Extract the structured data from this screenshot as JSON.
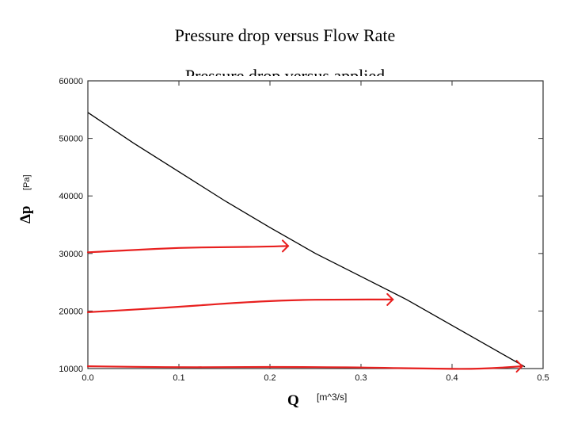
{
  "slide": {
    "title": "Pressure drop versus Flow Rate",
    "subtitle_partial": "Pressure drop versus applied"
  },
  "chart_data": {
    "type": "line",
    "xlabel": "Q",
    "xlabel_unit": "[m^3/s]",
    "ylabel": "Δp",
    "ylabel_unit": "[Pa]",
    "xlim": [
      0.0,
      0.5
    ],
    "ylim": [
      10000,
      60000
    ],
    "x_ticks": [
      "0.0",
      "0.1",
      "0.2",
      "0.3",
      "0.4",
      "0.5"
    ],
    "y_ticks": [
      "10000",
      "20000",
      "30000",
      "40000",
      "50000",
      "60000"
    ],
    "grid": false,
    "series": [
      {
        "x": [
          0.0,
          0.05,
          0.1,
          0.15,
          0.2,
          0.25,
          0.3,
          0.35,
          0.4,
          0.45,
          0.48
        ],
        "y": [
          54500,
          49200,
          44200,
          39200,
          34500,
          30000,
          26000,
          22000,
          17500,
          13000,
          10300
        ],
        "color": "#000000"
      }
    ],
    "annotations": [
      {
        "kind": "red-arrow",
        "color": "#e8201f",
        "points": [
          [
            0.0,
            30200
          ],
          [
            0.05,
            30600
          ],
          [
            0.1,
            31000
          ],
          [
            0.15,
            31100
          ],
          [
            0.2,
            31200
          ],
          [
            0.22,
            31300
          ]
        ]
      },
      {
        "kind": "red-arrow",
        "color": "#e8201f",
        "points": [
          [
            0.0,
            19800
          ],
          [
            0.08,
            20500
          ],
          [
            0.16,
            21400
          ],
          [
            0.22,
            21900
          ],
          [
            0.28,
            22000
          ],
          [
            0.335,
            22000
          ]
        ]
      },
      {
        "kind": "red-arrow",
        "color": "#e8201f",
        "points": [
          [
            0.0,
            10400
          ],
          [
            0.1,
            10200
          ],
          [
            0.2,
            10300
          ],
          [
            0.3,
            10200
          ],
          [
            0.37,
            10000
          ],
          [
            0.43,
            9900
          ],
          [
            0.477,
            10400
          ]
        ]
      }
    ],
    "colors": {
      "axis": "#333333",
      "curve": "#000000",
      "annotation": "#e8201f"
    }
  }
}
